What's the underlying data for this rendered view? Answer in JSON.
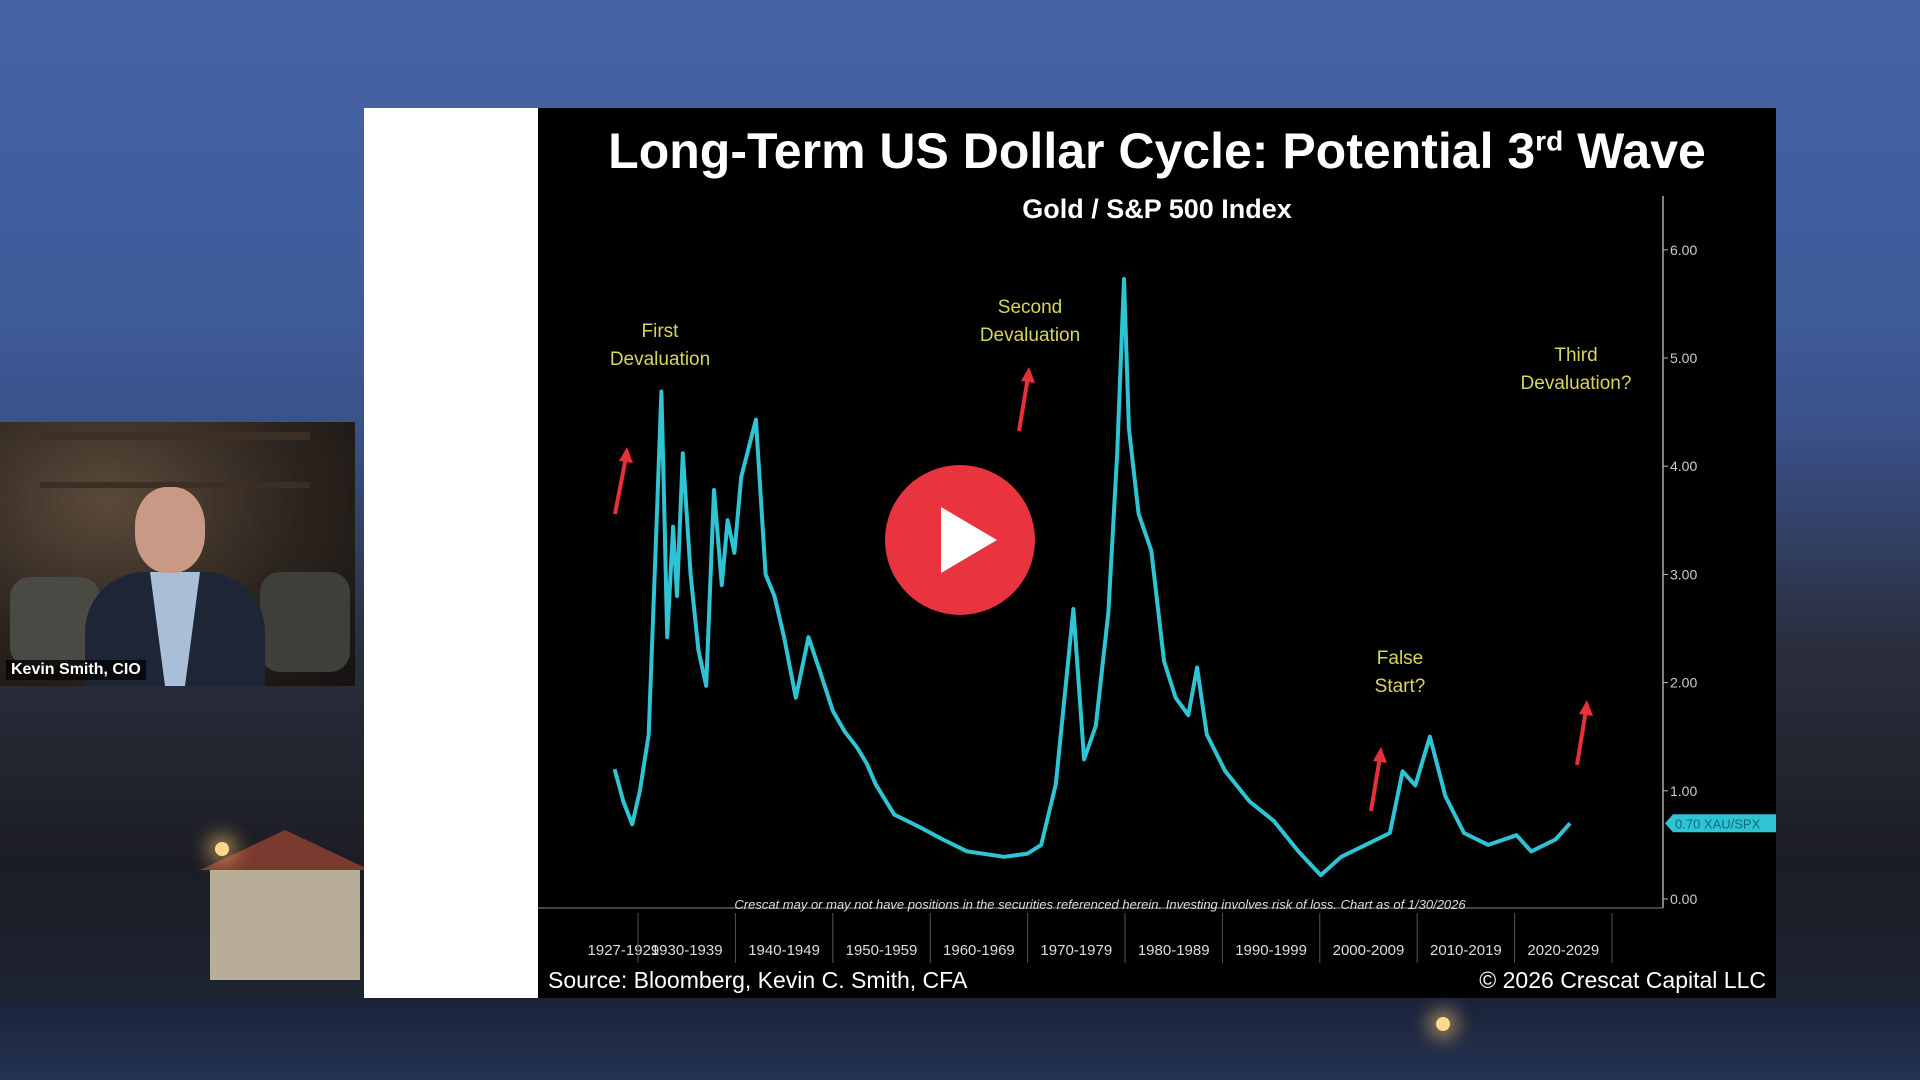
{
  "video": {
    "play_icon": "play-icon",
    "play_color": "#e9343f"
  },
  "webcam": {
    "name_label": "Kevin Smith, CIO"
  },
  "slide": {
    "title_main": "Long-Term US Dollar Cycle: Potential 3",
    "title_sup": "rd",
    "title_end": " Wave",
    "subtitle": "Gold / S&P 500 Index",
    "disclaimer": "Crescat may or may not have positions in the securities referenced herein. Investing involves risk of loss. Chart as of 1/30/2026",
    "source": "Source: Bloomberg, Kevin C. Smith, CFA",
    "copyright": "© 2026 Crescat Capital LLC"
  },
  "chart_data": {
    "type": "line",
    "title": "Long-Term US Dollar Cycle: Potential 3rd Wave",
    "subtitle": "Gold / S&P 500 Index",
    "line_color": "#2ec4d4",
    "annotation_color": "#d6d65a",
    "arrow_color": "#e8303a",
    "ylim": [
      0,
      6
    ],
    "y_ticks": [
      "0.00",
      "1.00",
      "2.00",
      "3.00",
      "4.00",
      "5.00",
      "6.00"
    ],
    "y_axis_side": "right",
    "x_tick_labels": [
      "1927-1929",
      "1930-1939",
      "1940-1949",
      "1950-1959",
      "1960-1969",
      "1970-1979",
      "1980-1989",
      "1990-1999",
      "2000-2009",
      "2010-2019",
      "2020-2029"
    ],
    "last_value_label": "0.70 XAU/SPX",
    "series": [
      {
        "x": [
          1927.6,
          1928.5,
          1929.4,
          1930.2,
          1931.1,
          1931.8,
          1932.4,
          1932.7,
          1933.0,
          1933.6,
          1934.0,
          1934.6,
          1935.4,
          1936.2,
          1937.0,
          1937.8,
          1938.6,
          1939.2,
          1939.9,
          1940.6,
          1942.1,
          1943.1,
          1944.0,
          1945.0,
          1946.2,
          1947.5,
          1948.7,
          1950.0,
          1951.2,
          1952.5,
          1953.5,
          1954.4,
          1956.3,
          1958.8,
          1961.3,
          1963.8,
          1967.6,
          1970.0,
          1971.4,
          1972.9,
          1974.7,
          1975.8,
          1977.0,
          1978.3,
          1979.2,
          1979.9,
          1980.4,
          1981.4,
          1982.7,
          1984.0,
          1985.2,
          1986.5,
          1987.4,
          1988.4,
          1990.3,
          1992.8,
          1995.3,
          1997.8,
          2000.1,
          2002.2,
          2004.7,
          2007.2,
          2008.5,
          2009.8,
          2011.3,
          2012.9,
          2014.8,
          2017.3,
          2020.2,
          2021.7,
          2024.2,
          2025.7
        ],
        "y": [
          1.2,
          0.9,
          0.69,
          1.0,
          1.52,
          3.2,
          4.69,
          3.6,
          2.42,
          3.44,
          2.8,
          4.12,
          3.0,
          2.3,
          1.97,
          3.78,
          2.9,
          3.5,
          3.2,
          3.9,
          4.43,
          3.0,
          2.8,
          2.42,
          1.86,
          2.42,
          2.1,
          1.74,
          1.55,
          1.4,
          1.25,
          1.06,
          0.78,
          0.67,
          0.55,
          0.44,
          0.39,
          0.42,
          0.5,
          1.06,
          2.68,
          1.29,
          1.6,
          2.65,
          4.12,
          5.73,
          4.35,
          3.56,
          3.22,
          2.2,
          1.86,
          1.7,
          2.14,
          1.52,
          1.18,
          0.9,
          0.72,
          0.44,
          0.22,
          0.39,
          0.5,
          0.61,
          1.18,
          1.05,
          1.5,
          0.95,
          0.61,
          0.5,
          0.59,
          0.44,
          0.55,
          0.7
        ]
      }
    ],
    "annotations": [
      {
        "text_lines": [
          "First",
          "Devaluation"
        ],
        "year": 1931
      },
      {
        "text_lines": [
          "Second",
          "Devaluation"
        ],
        "year": 1969
      },
      {
        "text_lines": [
          "Third",
          "Devaluation?"
        ],
        "year": 2027
      },
      {
        "text_lines": [
          "False",
          "Start?"
        ],
        "year": 2007
      }
    ]
  }
}
